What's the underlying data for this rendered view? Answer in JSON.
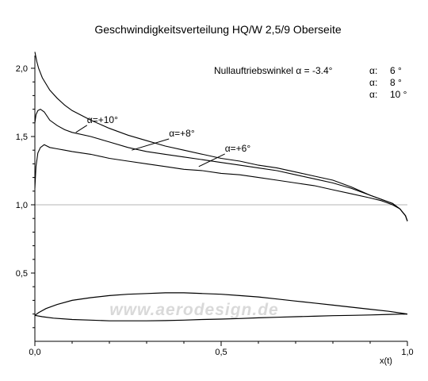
{
  "chart_data": {
    "type": "line",
    "title": "Geschwindigkeitsverteilung HQ/W 2,5/9 Oberseite",
    "xlabel": "x(t)",
    "ylabel": "",
    "xlim": [
      0,
      1
    ],
    "ylim": [
      0,
      2.05
    ],
    "x_ticks": [
      "0,0",
      "0,5",
      "1,0"
    ],
    "y_ticks": [
      {
        "v": 0.5,
        "label": "0,5"
      },
      {
        "v": 1.0,
        "label": "1,0"
      },
      {
        "v": 1.5,
        "label": "1,5"
      },
      {
        "v": 2.0,
        "label": "2,0"
      }
    ],
    "reference_line_y": 1.0,
    "annotation_header": "Nullauftriebswinkel  α = -3.4°",
    "legend": [
      {
        "sym": "α:",
        "val": "6 °"
      },
      {
        "sym": "α:",
        "val": "8 °"
      },
      {
        "sym": "α:",
        "val": "10 °"
      }
    ],
    "series": [
      {
        "label": "α=+10°",
        "label_anchor": [
          0.14,
          1.6
        ],
        "leader_to": [
          0.11,
          1.53
        ],
        "points": [
          [
            0.0,
            2.12
          ],
          [
            0.005,
            2.05
          ],
          [
            0.01,
            2.0
          ],
          [
            0.02,
            1.93
          ],
          [
            0.04,
            1.84
          ],
          [
            0.06,
            1.78
          ],
          [
            0.08,
            1.73
          ],
          [
            0.1,
            1.69
          ],
          [
            0.15,
            1.62
          ],
          [
            0.2,
            1.56
          ],
          [
            0.25,
            1.51
          ],
          [
            0.3,
            1.47
          ],
          [
            0.35,
            1.43
          ],
          [
            0.4,
            1.4
          ],
          [
            0.45,
            1.37
          ],
          [
            0.5,
            1.34
          ],
          [
            0.55,
            1.32
          ],
          [
            0.6,
            1.29
          ],
          [
            0.65,
            1.27
          ],
          [
            0.7,
            1.24
          ],
          [
            0.75,
            1.21
          ],
          [
            0.8,
            1.18
          ],
          [
            0.85,
            1.13
          ],
          [
            0.9,
            1.07
          ],
          [
            0.93,
            1.04
          ],
          [
            0.96,
            1.01
          ],
          [
            0.98,
            0.97
          ],
          [
            0.995,
            0.92
          ],
          [
            1.0,
            0.88
          ]
        ]
      },
      {
        "label": "α=+8°",
        "label_anchor": [
          0.36,
          1.5
        ],
        "leader_to": [
          0.26,
          1.4
        ],
        "points": [
          [
            0.0,
            1.6
          ],
          [
            0.003,
            1.66
          ],
          [
            0.008,
            1.69
          ],
          [
            0.015,
            1.7
          ],
          [
            0.025,
            1.68
          ],
          [
            0.04,
            1.62
          ],
          [
            0.06,
            1.58
          ],
          [
            0.08,
            1.55
          ],
          [
            0.1,
            1.53
          ],
          [
            0.15,
            1.5
          ],
          [
            0.2,
            1.46
          ],
          [
            0.25,
            1.42
          ],
          [
            0.3,
            1.39
          ],
          [
            0.35,
            1.37
          ],
          [
            0.4,
            1.35
          ],
          [
            0.45,
            1.33
          ],
          [
            0.5,
            1.31
          ],
          [
            0.55,
            1.29
          ],
          [
            0.6,
            1.27
          ],
          [
            0.65,
            1.25
          ],
          [
            0.7,
            1.22
          ],
          [
            0.75,
            1.19
          ],
          [
            0.8,
            1.16
          ],
          [
            0.85,
            1.12
          ],
          [
            0.9,
            1.07
          ],
          [
            0.93,
            1.04
          ],
          [
            0.96,
            1.01
          ],
          [
            0.98,
            0.97
          ],
          [
            0.995,
            0.92
          ],
          [
            1.0,
            0.88
          ]
        ]
      },
      {
        "label": "α=+6°",
        "label_anchor": [
          0.51,
          1.39
        ],
        "leader_to": [
          0.44,
          1.28
        ],
        "points": [
          [
            0.0,
            1.12
          ],
          [
            0.003,
            1.28
          ],
          [
            0.008,
            1.38
          ],
          [
            0.015,
            1.42
          ],
          [
            0.025,
            1.44
          ],
          [
            0.04,
            1.42
          ],
          [
            0.06,
            1.41
          ],
          [
            0.08,
            1.4
          ],
          [
            0.1,
            1.39
          ],
          [
            0.15,
            1.37
          ],
          [
            0.2,
            1.34
          ],
          [
            0.25,
            1.32
          ],
          [
            0.3,
            1.3
          ],
          [
            0.35,
            1.28
          ],
          [
            0.4,
            1.26
          ],
          [
            0.45,
            1.25
          ],
          [
            0.5,
            1.23
          ],
          [
            0.55,
            1.22
          ],
          [
            0.6,
            1.2
          ],
          [
            0.65,
            1.18
          ],
          [
            0.7,
            1.16
          ],
          [
            0.75,
            1.14
          ],
          [
            0.8,
            1.11
          ],
          [
            0.85,
            1.08
          ],
          [
            0.9,
            1.05
          ],
          [
            0.93,
            1.03
          ],
          [
            0.96,
            1.0
          ],
          [
            0.98,
            0.97
          ],
          [
            0.995,
            0.92
          ],
          [
            1.0,
            0.88
          ]
        ]
      }
    ],
    "airfoil": {
      "upper": [
        [
          0.0,
          0.19
        ],
        [
          0.01,
          0.21
        ],
        [
          0.03,
          0.24
        ],
        [
          0.06,
          0.27
        ],
        [
          0.1,
          0.3
        ],
        [
          0.15,
          0.32
        ],
        [
          0.2,
          0.335
        ],
        [
          0.25,
          0.345
        ],
        [
          0.3,
          0.35
        ],
        [
          0.35,
          0.355
        ],
        [
          0.4,
          0.355
        ],
        [
          0.45,
          0.35
        ],
        [
          0.5,
          0.345
        ],
        [
          0.55,
          0.335
        ],
        [
          0.6,
          0.325
        ],
        [
          0.65,
          0.31
        ],
        [
          0.7,
          0.295
        ],
        [
          0.75,
          0.28
        ],
        [
          0.8,
          0.265
        ],
        [
          0.85,
          0.25
        ],
        [
          0.9,
          0.235
        ],
        [
          0.95,
          0.22
        ],
        [
          1.0,
          0.2
        ]
      ],
      "lower": [
        [
          0.0,
          0.19
        ],
        [
          0.02,
          0.18
        ],
        [
          0.05,
          0.17
        ],
        [
          0.1,
          0.16
        ],
        [
          0.15,
          0.155
        ],
        [
          0.2,
          0.15
        ],
        [
          0.25,
          0.15
        ],
        [
          0.3,
          0.15
        ],
        [
          0.35,
          0.152
        ],
        [
          0.4,
          0.155
        ],
        [
          0.45,
          0.16
        ],
        [
          0.5,
          0.163
        ],
        [
          0.55,
          0.167
        ],
        [
          0.6,
          0.172
        ],
        [
          0.65,
          0.176
        ],
        [
          0.7,
          0.18
        ],
        [
          0.75,
          0.184
        ],
        [
          0.8,
          0.188
        ],
        [
          0.85,
          0.19
        ],
        [
          0.9,
          0.193
        ],
        [
          0.95,
          0.197
        ],
        [
          1.0,
          0.2
        ]
      ]
    },
    "watermark": "www.aerodesign.de"
  }
}
